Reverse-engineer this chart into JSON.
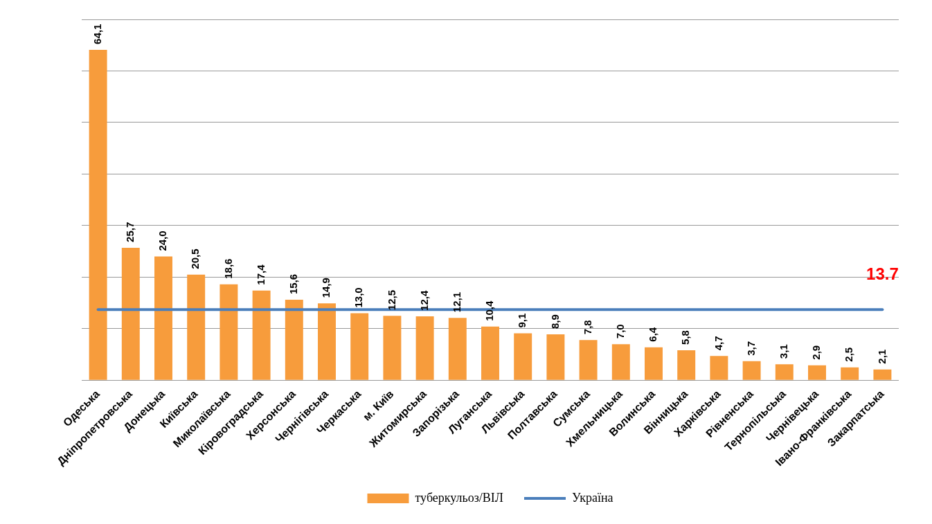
{
  "chart_data": {
    "type": "bar",
    "categories": [
      "Одеська",
      "Дніпропетровська",
      "Донецька",
      "Київська",
      "Миколаївська",
      "Кіровоградська",
      "Херсонська",
      "Чернігівська",
      "Черкаська",
      "м. Київ",
      "Житомирська",
      "Запорізька",
      "Луганська",
      "Львівська",
      "Полтавська",
      "Сумська",
      "Хмельницька",
      "Волинська",
      "Вінницька",
      "Харківська",
      "Рівненська",
      "Тернопільська",
      "Чернівецька",
      "Івано-Франківська",
      "Закарпатська"
    ],
    "series": [
      {
        "name": "туберкульоз/ВІЛ",
        "color": "#f79c3c",
        "values": [
          64.1,
          25.7,
          24.0,
          20.5,
          18.6,
          17.4,
          15.6,
          14.9,
          13.0,
          12.5,
          12.4,
          12.1,
          10.4,
          9.1,
          8.9,
          7.8,
          7.0,
          6.4,
          5.8,
          4.7,
          3.7,
          3.1,
          2.9,
          2.5,
          2.1
        ],
        "value_labels": [
          "64,1",
          "25,7",
          "24,0",
          "20,5",
          "18,6",
          "17,4",
          "15,6",
          "14,9",
          "13,0",
          "12,5",
          "12,4",
          "12,1",
          "10,4",
          "9,1",
          "8,9",
          "7,8",
          "7,0",
          "6,4",
          "5,8",
          "4,7",
          "3,7",
          "3,1",
          "2,9",
          "2,5",
          "2,1"
        ]
      },
      {
        "name": "Україна",
        "type": "line",
        "color": "#4a7ebb",
        "marker": "none",
        "values": [
          13.7,
          13.7,
          13.7,
          13.7,
          13.7,
          13.7,
          13.7,
          13.7,
          13.7,
          13.7,
          13.7,
          13.7,
          13.7,
          13.7,
          13.7,
          13.7,
          13.7,
          13.7,
          13.7,
          13.7,
          13.7,
          13.7,
          13.7,
          13.7,
          13.7
        ]
      }
    ],
    "annotations": [
      {
        "text": "13.7",
        "x": "Закарпатська",
        "y": 13.7
      }
    ],
    "ylim": [
      0,
      70
    ],
    "yticks": [
      {
        "value": 0,
        "label": null
      },
      {
        "value": 10,
        "label": null
      },
      {
        "value": 20,
        "label": null
      },
      {
        "value": 30,
        "label": null
      },
      {
        "value": 40,
        "label": null
      },
      {
        "value": 50,
        "label": null
      },
      {
        "value": 60,
        "label": null
      },
      {
        "value": 70,
        "label": null
      }
    ],
    "tick_labels": "x",
    "grid": "y",
    "legend": "bottom"
  }
}
